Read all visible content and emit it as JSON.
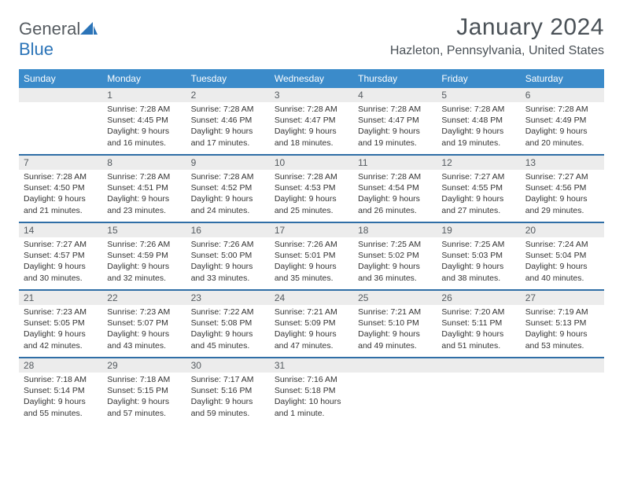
{
  "logo": {
    "text1": "General",
    "text2": "Blue"
  },
  "title": "January 2024",
  "location": "Hazleton, Pennsylvania, United States",
  "colors": {
    "header_bg": "#3b8bca",
    "header_text": "#ffffff",
    "week_border": "#2f6ea6",
    "daynum_bg": "#ececec",
    "body_text": "#333333",
    "title_text": "#4a5157",
    "logo_gray": "#555b60",
    "logo_blue": "#2b74b8"
  },
  "weekdays": [
    "Sunday",
    "Monday",
    "Tuesday",
    "Wednesday",
    "Thursday",
    "Friday",
    "Saturday"
  ],
  "weeks": [
    [
      {
        "n": "",
        "sr": "",
        "ss": "",
        "dl": ""
      },
      {
        "n": "1",
        "sr": "Sunrise: 7:28 AM",
        "ss": "Sunset: 4:45 PM",
        "dl": "Daylight: 9 hours and 16 minutes."
      },
      {
        "n": "2",
        "sr": "Sunrise: 7:28 AM",
        "ss": "Sunset: 4:46 PM",
        "dl": "Daylight: 9 hours and 17 minutes."
      },
      {
        "n": "3",
        "sr": "Sunrise: 7:28 AM",
        "ss": "Sunset: 4:47 PM",
        "dl": "Daylight: 9 hours and 18 minutes."
      },
      {
        "n": "4",
        "sr": "Sunrise: 7:28 AM",
        "ss": "Sunset: 4:47 PM",
        "dl": "Daylight: 9 hours and 19 minutes."
      },
      {
        "n": "5",
        "sr": "Sunrise: 7:28 AM",
        "ss": "Sunset: 4:48 PM",
        "dl": "Daylight: 9 hours and 19 minutes."
      },
      {
        "n": "6",
        "sr": "Sunrise: 7:28 AM",
        "ss": "Sunset: 4:49 PM",
        "dl": "Daylight: 9 hours and 20 minutes."
      }
    ],
    [
      {
        "n": "7",
        "sr": "Sunrise: 7:28 AM",
        "ss": "Sunset: 4:50 PM",
        "dl": "Daylight: 9 hours and 21 minutes."
      },
      {
        "n": "8",
        "sr": "Sunrise: 7:28 AM",
        "ss": "Sunset: 4:51 PM",
        "dl": "Daylight: 9 hours and 23 minutes."
      },
      {
        "n": "9",
        "sr": "Sunrise: 7:28 AM",
        "ss": "Sunset: 4:52 PM",
        "dl": "Daylight: 9 hours and 24 minutes."
      },
      {
        "n": "10",
        "sr": "Sunrise: 7:28 AM",
        "ss": "Sunset: 4:53 PM",
        "dl": "Daylight: 9 hours and 25 minutes."
      },
      {
        "n": "11",
        "sr": "Sunrise: 7:28 AM",
        "ss": "Sunset: 4:54 PM",
        "dl": "Daylight: 9 hours and 26 minutes."
      },
      {
        "n": "12",
        "sr": "Sunrise: 7:27 AM",
        "ss": "Sunset: 4:55 PM",
        "dl": "Daylight: 9 hours and 27 minutes."
      },
      {
        "n": "13",
        "sr": "Sunrise: 7:27 AM",
        "ss": "Sunset: 4:56 PM",
        "dl": "Daylight: 9 hours and 29 minutes."
      }
    ],
    [
      {
        "n": "14",
        "sr": "Sunrise: 7:27 AM",
        "ss": "Sunset: 4:57 PM",
        "dl": "Daylight: 9 hours and 30 minutes."
      },
      {
        "n": "15",
        "sr": "Sunrise: 7:26 AM",
        "ss": "Sunset: 4:59 PM",
        "dl": "Daylight: 9 hours and 32 minutes."
      },
      {
        "n": "16",
        "sr": "Sunrise: 7:26 AM",
        "ss": "Sunset: 5:00 PM",
        "dl": "Daylight: 9 hours and 33 minutes."
      },
      {
        "n": "17",
        "sr": "Sunrise: 7:26 AM",
        "ss": "Sunset: 5:01 PM",
        "dl": "Daylight: 9 hours and 35 minutes."
      },
      {
        "n": "18",
        "sr": "Sunrise: 7:25 AM",
        "ss": "Sunset: 5:02 PM",
        "dl": "Daylight: 9 hours and 36 minutes."
      },
      {
        "n": "19",
        "sr": "Sunrise: 7:25 AM",
        "ss": "Sunset: 5:03 PM",
        "dl": "Daylight: 9 hours and 38 minutes."
      },
      {
        "n": "20",
        "sr": "Sunrise: 7:24 AM",
        "ss": "Sunset: 5:04 PM",
        "dl": "Daylight: 9 hours and 40 minutes."
      }
    ],
    [
      {
        "n": "21",
        "sr": "Sunrise: 7:23 AM",
        "ss": "Sunset: 5:05 PM",
        "dl": "Daylight: 9 hours and 42 minutes."
      },
      {
        "n": "22",
        "sr": "Sunrise: 7:23 AM",
        "ss": "Sunset: 5:07 PM",
        "dl": "Daylight: 9 hours and 43 minutes."
      },
      {
        "n": "23",
        "sr": "Sunrise: 7:22 AM",
        "ss": "Sunset: 5:08 PM",
        "dl": "Daylight: 9 hours and 45 minutes."
      },
      {
        "n": "24",
        "sr": "Sunrise: 7:21 AM",
        "ss": "Sunset: 5:09 PM",
        "dl": "Daylight: 9 hours and 47 minutes."
      },
      {
        "n": "25",
        "sr": "Sunrise: 7:21 AM",
        "ss": "Sunset: 5:10 PM",
        "dl": "Daylight: 9 hours and 49 minutes."
      },
      {
        "n": "26",
        "sr": "Sunrise: 7:20 AM",
        "ss": "Sunset: 5:11 PM",
        "dl": "Daylight: 9 hours and 51 minutes."
      },
      {
        "n": "27",
        "sr": "Sunrise: 7:19 AM",
        "ss": "Sunset: 5:13 PM",
        "dl": "Daylight: 9 hours and 53 minutes."
      }
    ],
    [
      {
        "n": "28",
        "sr": "Sunrise: 7:18 AM",
        "ss": "Sunset: 5:14 PM",
        "dl": "Daylight: 9 hours and 55 minutes."
      },
      {
        "n": "29",
        "sr": "Sunrise: 7:18 AM",
        "ss": "Sunset: 5:15 PM",
        "dl": "Daylight: 9 hours and 57 minutes."
      },
      {
        "n": "30",
        "sr": "Sunrise: 7:17 AM",
        "ss": "Sunset: 5:16 PM",
        "dl": "Daylight: 9 hours and 59 minutes."
      },
      {
        "n": "31",
        "sr": "Sunrise: 7:16 AM",
        "ss": "Sunset: 5:18 PM",
        "dl": "Daylight: 10 hours and 1 minute."
      },
      {
        "n": "",
        "sr": "",
        "ss": "",
        "dl": ""
      },
      {
        "n": "",
        "sr": "",
        "ss": "",
        "dl": ""
      },
      {
        "n": "",
        "sr": "",
        "ss": "",
        "dl": ""
      }
    ]
  ]
}
